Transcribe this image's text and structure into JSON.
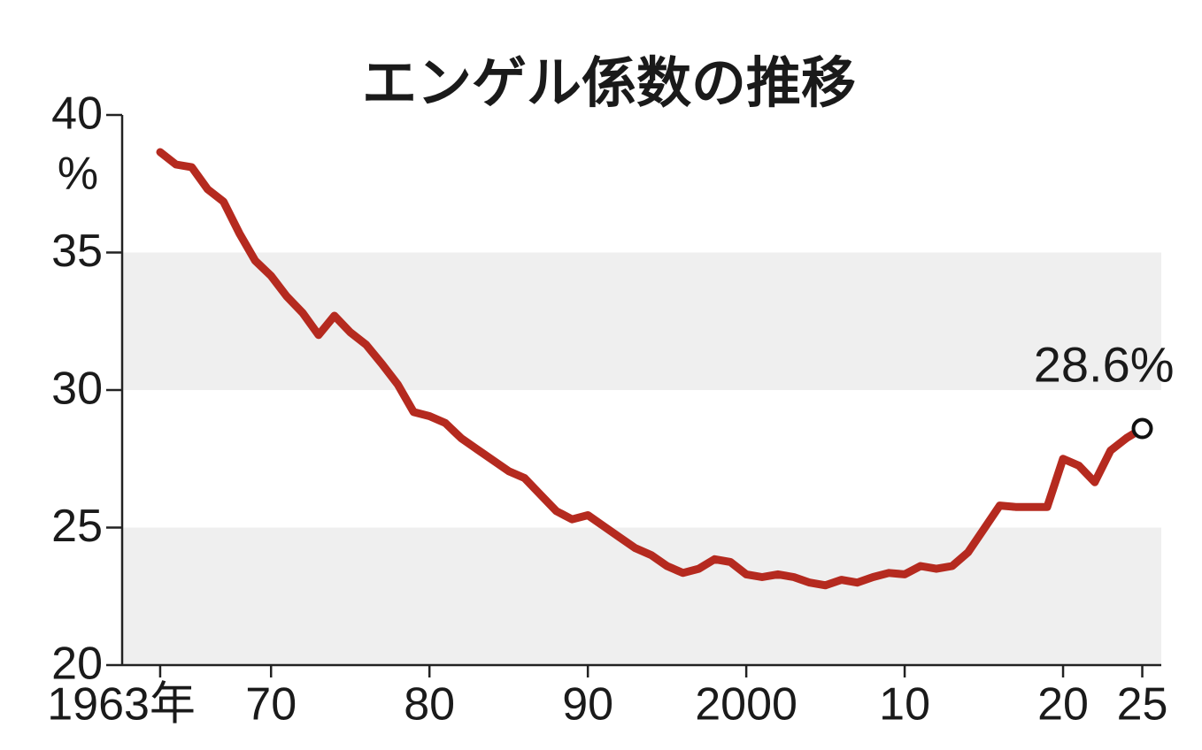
{
  "chart_data": {
    "type": "line",
    "title": "エンゲル係数の推移",
    "y_label": "%",
    "x": [
      1963,
      1964,
      1965,
      1966,
      1967,
      1968,
      1969,
      1970,
      1971,
      1972,
      1973,
      1974,
      1975,
      1976,
      1977,
      1978,
      1979,
      1980,
      1981,
      1982,
      1983,
      1984,
      1985,
      1986,
      1987,
      1988,
      1989,
      1990,
      1991,
      1992,
      1993,
      1994,
      1995,
      1996,
      1997,
      1998,
      1999,
      2000,
      2001,
      2002,
      2003,
      2004,
      2005,
      2006,
      2007,
      2008,
      2009,
      2010,
      2011,
      2012,
      2013,
      2014,
      2015,
      2016,
      2017,
      2018,
      2019,
      2020,
      2021,
      2022,
      2023,
      2024,
      2025
    ],
    "values": [
      38.65,
      38.2,
      38.1,
      37.3,
      36.85,
      35.7,
      34.7,
      34.15,
      33.4,
      32.8,
      32.0,
      32.7,
      32.1,
      31.65,
      30.95,
      30.2,
      29.2,
      29.05,
      28.8,
      28.25,
      27.85,
      27.45,
      27.05,
      26.8,
      26.2,
      25.6,
      25.3,
      25.45,
      25.05,
      24.65,
      24.25,
      24.0,
      23.6,
      23.35,
      23.5,
      23.85,
      23.75,
      23.3,
      23.2,
      23.3,
      23.2,
      23.0,
      22.9,
      23.1,
      23.0,
      23.2,
      23.35,
      23.3,
      23.6,
      23.5,
      23.6,
      24.1,
      24.95,
      25.8,
      25.75,
      25.75,
      25.75,
      27.5,
      27.25,
      26.65,
      27.8,
      28.25,
      28.6
    ],
    "value_labels": [
      null,
      null,
      null,
      null,
      null,
      null,
      null,
      null,
      null,
      null,
      null,
      null,
      null,
      null,
      null,
      null,
      null,
      null,
      null,
      null,
      null,
      null,
      null,
      null,
      null,
      null,
      null,
      null,
      null,
      null,
      null,
      null,
      null,
      null,
      null,
      null,
      null,
      null,
      null,
      null,
      null,
      null,
      null,
      null,
      null,
      null,
      null,
      null,
      null,
      null,
      null,
      null,
      null,
      null,
      null,
      null,
      null,
      null,
      null,
      null,
      null,
      null,
      "28.6%"
    ],
    "color": "#b52a1f",
    "xlim": [
      1960.6,
      2026.2
    ],
    "xticks": [
      {
        "value": 1963,
        "label": "1963年"
      },
      {
        "value": 1970,
        "label": "70"
      },
      {
        "value": 1980,
        "label": "80"
      },
      {
        "value": 1990,
        "label": "90"
      },
      2000,
      {
        "value": 2010,
        "label": "10"
      },
      {
        "value": 2020,
        "label": "20"
      },
      {
        "value": 2025,
        "label": "25"
      }
    ],
    "ylim": [
      20,
      40
    ],
    "yticks": [
      20,
      25,
      30,
      35,
      40
    ],
    "banded_grid": true
  }
}
